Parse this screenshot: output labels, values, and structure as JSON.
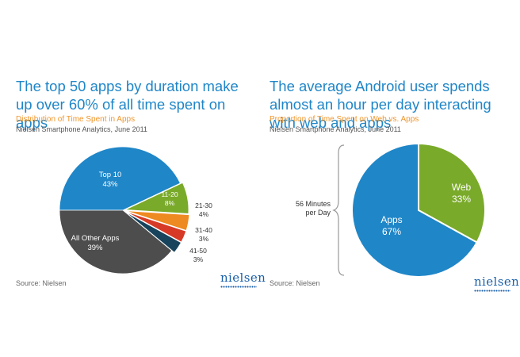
{
  "left": {
    "headline": "The top 50 apps by duration make up over 60% of all time spent on apps",
    "subtitle": "Distribution of Time Spent in Apps",
    "source_line": "Nielsen Smartphone Analytics, June 2011",
    "footer_source": "Source: Nielsen",
    "logo_text": "nielsen"
  },
  "right": {
    "headline": "The average Android user spends almost an hour per day interacting with web and apps",
    "subtitle": "Proportion of Time Spent on Web vs. Apps",
    "source_line": "Nielsen Smartphone Analytics, June 2011",
    "footer_source": "Source: Nielsen",
    "logo_text": "nielsen",
    "bracket_label_line1": "56 Minutes",
    "bracket_label_line2": "per Day"
  },
  "chart_data": [
    {
      "type": "pie",
      "title": "Distribution of Time Spent in Apps",
      "slices": [
        {
          "label": "Top 10",
          "value": 43,
          "value_label": "43%",
          "color": "#1f86c8"
        },
        {
          "label": "11-20",
          "value": 8,
          "value_label": "8%",
          "color": "#7aaa2a"
        },
        {
          "label": "21-30",
          "value": 4,
          "value_label": "4%",
          "color": "#ee8a22"
        },
        {
          "label": "31-40",
          "value": 3,
          "value_label": "3%",
          "color": "#d63a26"
        },
        {
          "label": "41-50",
          "value": 3,
          "value_label": "3%",
          "color": "#17445c"
        },
        {
          "label": "All Other Apps",
          "value": 39,
          "value_label": "39%",
          "color": "#4d4d4d"
        }
      ]
    },
    {
      "type": "pie",
      "title": "Proportion of Time Spent on Web vs. Apps",
      "slices": [
        {
          "label": "Web",
          "value": 33,
          "value_label": "33%",
          "color": "#7aaa2a"
        },
        {
          "label": "Apps",
          "value": 67,
          "value_label": "67%",
          "color": "#1f86c8"
        }
      ]
    }
  ]
}
